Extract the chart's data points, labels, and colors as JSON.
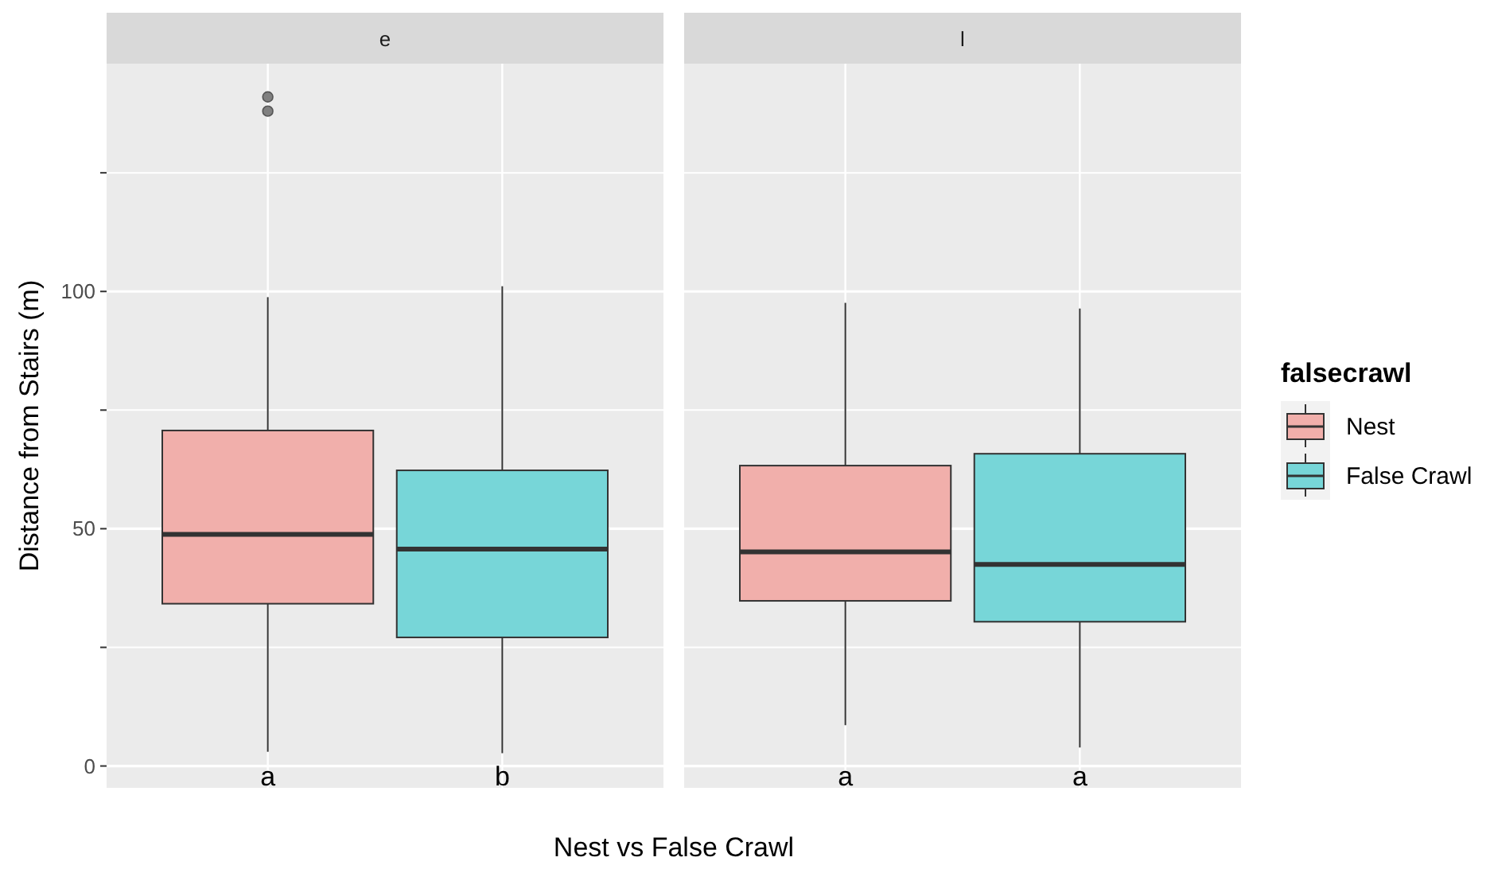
{
  "chart_data": {
    "type": "box",
    "ylabel": "Distance from Stairs (m)",
    "xlabel": "Nest vs False Crawl",
    "legend_title": "falsecrawl",
    "legend": "right",
    "categories": [
      "e",
      "l"
    ],
    "ylim": [
      -4.6,
      148
    ],
    "yticks": [
      0,
      {
        "value": 25,
        "label": null
      },
      50,
      {
        "value": 75,
        "label": null
      },
      100,
      {
        "value": 125,
        "label": null
      }
    ],
    "grid": true,
    "annotations": [
      "a",
      "b",
      "a",
      "a"
    ],
    "series": [
      {
        "name": "Nest",
        "color": "#f1afab",
        "boxes": [
          {
            "low": 3,
            "q1": 34.2,
            "median": 48.8,
            "q3": 70.7,
            "high": 98.8,
            "outliers": [
              138,
              141
            ]
          },
          {
            "low": 8.6,
            "q1": 34.8,
            "median": 45.1,
            "q3": 63.3,
            "high": 97.6
          }
        ]
      },
      {
        "name": "False Crawl",
        "color": "#77d6d8",
        "boxes": [
          {
            "low": 2.7,
            "q1": 27.1,
            "median": 45.7,
            "q3": 62.3,
            "high": 101.1
          },
          {
            "low": 3.9,
            "q1": 30.4,
            "median": 42.5,
            "q3": 65.8,
            "high": 96.4
          }
        ]
      }
    ]
  }
}
